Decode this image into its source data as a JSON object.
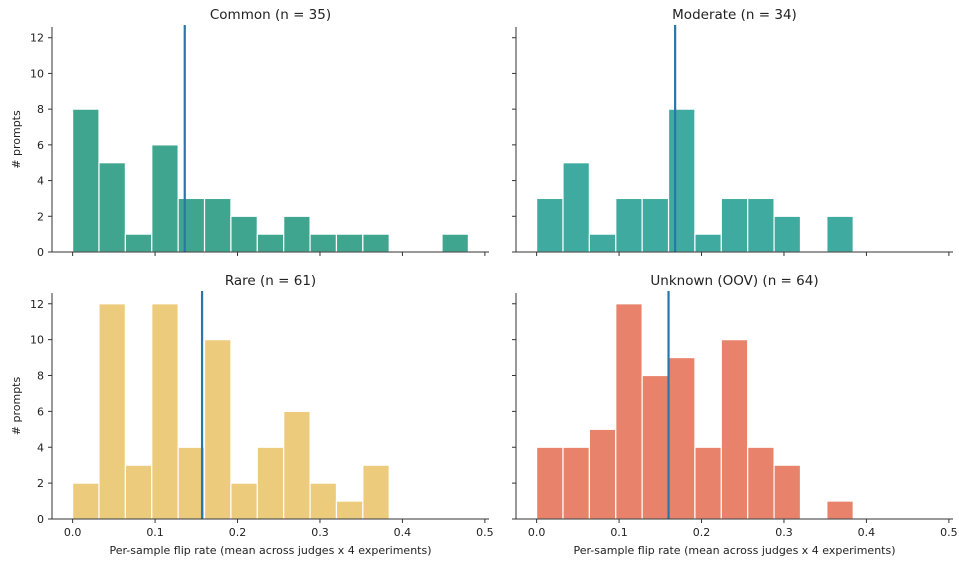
{
  "figure": {
    "ylabel": "# prompts",
    "xlabel": "Per-sample flip rate (mean across judges x 4 experiments)",
    "mean_line_color": "#2a76a8",
    "edge_color": "#ffffff"
  },
  "chart_data": [
    {
      "type": "bar",
      "title": "Common  (n = 35)",
      "color": "#3fa58f",
      "bin_width": 0.032,
      "bin_starts": [
        0.0,
        0.032,
        0.064,
        0.096,
        0.128,
        0.16,
        0.192,
        0.224,
        0.256,
        0.288,
        0.32,
        0.352,
        0.384,
        0.416,
        0.448
      ],
      "values": [
        8,
        5,
        1,
        6,
        3,
        3,
        2,
        1,
        2,
        1,
        1,
        1,
        0,
        0,
        1
      ],
      "mean": 0.136,
      "xlim": [
        -0.025,
        0.505
      ],
      "ylim": [
        0,
        12.6
      ],
      "xticks": [
        "0.0",
        "0.1",
        "0.2",
        "0.3",
        "0.4",
        "0.5"
      ],
      "yticks": [
        "0",
        "2",
        "4",
        "6",
        "8",
        "10",
        "12"
      ],
      "show_xticklabels": false,
      "show_yticklabels": true,
      "xlabel": "",
      "ylabel": "# prompts"
    },
    {
      "type": "bar",
      "title": "Moderate  (n = 34)",
      "color": "#3faba0",
      "bin_width": 0.032,
      "bin_starts": [
        0.0,
        0.032,
        0.064,
        0.096,
        0.128,
        0.16,
        0.192,
        0.224,
        0.256,
        0.288,
        0.32,
        0.352
      ],
      "values": [
        3,
        5,
        1,
        3,
        3,
        8,
        1,
        3,
        3,
        2,
        0,
        2
      ],
      "mean": 0.168,
      "xlim": [
        -0.025,
        0.505
      ],
      "ylim": [
        0,
        12.6
      ],
      "xticks": [
        "0.0",
        "0.1",
        "0.2",
        "0.3",
        "0.4",
        "0.5"
      ],
      "yticks": [
        "0",
        "2",
        "4",
        "6",
        "8",
        "10",
        "12"
      ],
      "show_xticklabels": false,
      "show_yticklabels": false,
      "xlabel": "",
      "ylabel": ""
    },
    {
      "type": "bar",
      "title": "Rare  (n = 61)",
      "color": "#eccb7c",
      "bin_width": 0.032,
      "bin_starts": [
        0.0,
        0.032,
        0.064,
        0.096,
        0.128,
        0.16,
        0.192,
        0.224,
        0.256,
        0.288,
        0.32,
        0.352
      ],
      "values": [
        2,
        12,
        3,
        12,
        4,
        10,
        2,
        4,
        6,
        2,
        1,
        3
      ],
      "mean": 0.157,
      "xlim": [
        -0.025,
        0.505
      ],
      "ylim": [
        0,
        12.6
      ],
      "xticks": [
        "0.0",
        "0.1",
        "0.2",
        "0.3",
        "0.4",
        "0.5"
      ],
      "yticks": [
        "0",
        "2",
        "4",
        "6",
        "8",
        "10",
        "12"
      ],
      "show_xticklabels": true,
      "show_yticklabels": true,
      "xlabel": "Per-sample flip rate (mean across judges x 4 experiments)",
      "ylabel": "# prompts"
    },
    {
      "type": "bar",
      "title": "Unknown (OOV)  (n = 64)",
      "color": "#e8826a",
      "bin_width": 0.032,
      "bin_starts": [
        0.0,
        0.032,
        0.064,
        0.096,
        0.128,
        0.16,
        0.192,
        0.224,
        0.256,
        0.288,
        0.32,
        0.352
      ],
      "values": [
        4,
        4,
        5,
        12,
        8,
        9,
        4,
        10,
        4,
        3,
        0,
        1
      ],
      "mean": 0.16,
      "xlim": [
        -0.025,
        0.505
      ],
      "ylim": [
        0,
        12.6
      ],
      "xticks": [
        "0.0",
        "0.1",
        "0.2",
        "0.3",
        "0.4",
        "0.5"
      ],
      "yticks": [
        "0",
        "2",
        "4",
        "6",
        "8",
        "10",
        "12"
      ],
      "show_xticklabels": true,
      "show_yticklabels": false,
      "xlabel": "Per-sample flip rate (mean across judges x 4 experiments)",
      "ylabel": ""
    }
  ]
}
